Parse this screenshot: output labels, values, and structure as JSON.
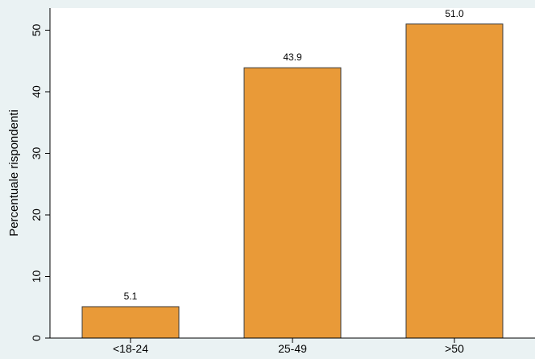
{
  "chart_data": {
    "type": "bar",
    "title": "",
    "xlabel": "",
    "ylabel": "Percentuale rispondenti",
    "categories": [
      "<18-24",
      "25-49",
      ">50"
    ],
    "values": [
      5.1,
      43.9,
      51.0
    ],
    "value_labels": [
      "5.1",
      "43.9",
      "51.0"
    ],
    "y_ticks": [
      0,
      10,
      20,
      30,
      40,
      50
    ],
    "ylim": [
      0,
      52
    ],
    "grid": false,
    "legend": "none",
    "colors": {
      "bar": "#e99a38",
      "bar_stroke": "#3a3a3a",
      "plot_bg": "#ffffff",
      "page_bg": "#eaf2f3"
    }
  }
}
